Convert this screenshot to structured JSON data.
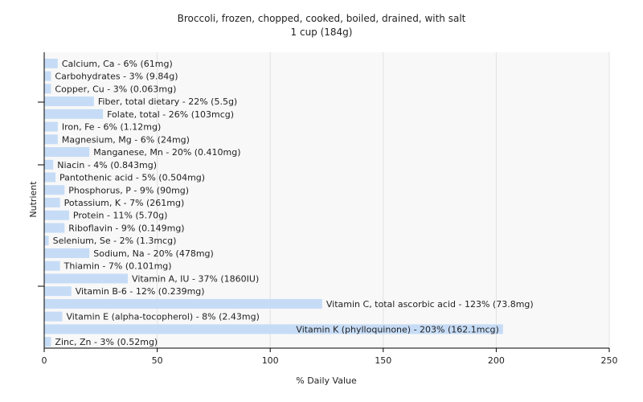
{
  "chart_data": {
    "type": "bar",
    "orientation": "horizontal",
    "title": "Broccoli, frozen, chopped, cooked, boiled, drained, with salt",
    "subtitle": "1 cup (184g)",
    "xlabel": "% Daily Value",
    "ylabel": "Nutrient",
    "xlim": [
      0,
      250
    ],
    "xticks": [
      "0",
      "50",
      "100",
      "150",
      "200",
      "250"
    ],
    "grid": true,
    "bar_color": "#c6dcf6",
    "categories": [
      "Calcium, Ca",
      "Carbohydrates",
      "Copper, Cu",
      "Fiber, total dietary",
      "Folate, total",
      "Iron, Fe",
      "Magnesium, Mg",
      "Manganese, Mn",
      "Niacin",
      "Pantothenic acid",
      "Phosphorus, P",
      "Potassium, K",
      "Protein",
      "Riboflavin",
      "Selenium, Se",
      "Sodium, Na",
      "Thiamin",
      "Vitamin A, IU",
      "Vitamin B-6",
      "Vitamin C, total ascorbic acid",
      "Vitamin E (alpha-tocopherol)",
      "Vitamin K (phylloquinone)",
      "Zinc, Zn"
    ],
    "values": [
      6,
      3,
      3,
      22,
      26,
      6,
      6,
      20,
      4,
      5,
      9,
      7,
      11,
      9,
      2,
      20,
      7,
      37,
      12,
      123,
      8,
      203,
      3
    ],
    "labels": [
      "Calcium, Ca - 6% (61mg)",
      "Carbohydrates - 3% (9.84g)",
      "Copper, Cu - 3% (0.063mg)",
      "Fiber, total dietary - 22% (5.5g)",
      "Folate, total - 26% (103mcg)",
      "Iron, Fe - 6% (1.12mg)",
      "Magnesium, Mg - 6% (24mg)",
      "Manganese, Mn - 20% (0.410mg)",
      "Niacin - 4% (0.843mg)",
      "Pantothenic acid - 5% (0.504mg)",
      "Phosphorus, P - 9% (90mg)",
      "Potassium, K - 7% (261mg)",
      "Protein - 11% (5.70g)",
      "Riboflavin - 9% (0.149mg)",
      "Selenium, Se - 2% (1.3mcg)",
      "Sodium, Na - 20% (478mg)",
      "Thiamin - 7% (0.101mg)",
      "Vitamin A, IU - 37% (1860IU)",
      "Vitamin B-6 - 12% (0.239mg)",
      "Vitamin C, total ascorbic acid - 123% (73.8mg)",
      "Vitamin E (alpha-tocopherol) - 8% (2.43mg)",
      "Vitamin K (phylloquinone) - 203% (162.1mcg)",
      "Zinc, Zn - 3% (0.52mg)"
    ]
  }
}
